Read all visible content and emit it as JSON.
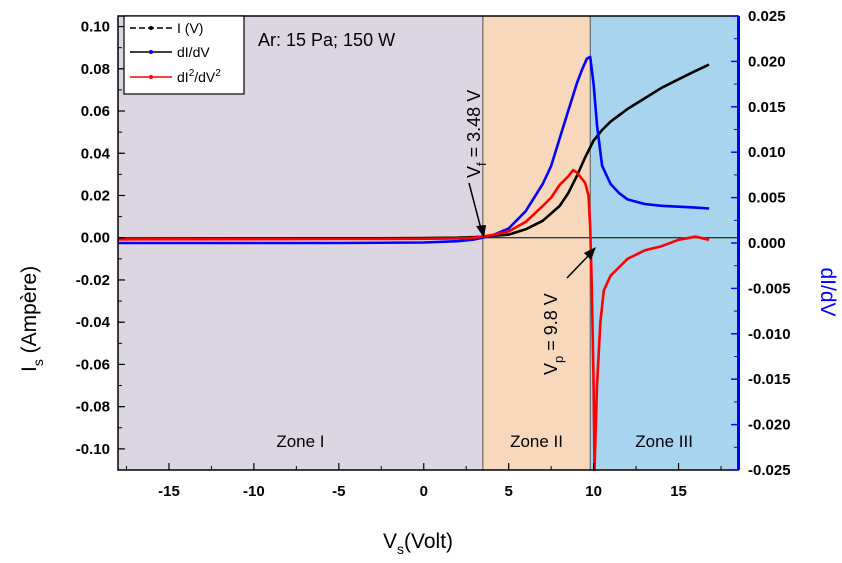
{
  "chart_data": {
    "type": "line",
    "xlabel": {
      "main": "V",
      "sub": "s",
      "rest": "(Volt)"
    },
    "ylabel": {
      "main": "I",
      "sub": "s",
      "rest": " (Ampère)"
    },
    "y2label": "dI/dV",
    "xlim": [
      -18,
      18.5
    ],
    "ylim": [
      -0.11,
      0.105
    ],
    "y2lim": [
      -0.025,
      0.025
    ],
    "xticks": [
      "-15",
      "-10",
      "-5",
      "0",
      "5",
      "10",
      "15"
    ],
    "yticks": [
      "0.10",
      "0.08",
      "0.06",
      "0.04",
      "0.02",
      "0.00",
      "-0.02",
      "-0.04",
      "-0.06",
      "-0.08",
      "-0.10"
    ],
    "y2ticks": [
      "0.025",
      "0.020",
      "0.015",
      "0.010",
      "0.005",
      "0.000",
      "-0.005",
      "-0.010",
      "-0.015",
      "-0.020",
      "-0.025"
    ],
    "title_annotation": "Ar: 15 Pa; 150 W",
    "legend": {
      "placement": "top-left",
      "entries": [
        {
          "label": "I (V)",
          "color": "#000000"
        },
        {
          "label": "dI/dV",
          "color": "#0000ff"
        },
        {
          "label": "dI2/dV2",
          "main": "dI",
          "sup1": "2",
          "mid": "/dV",
          "sup2": "2",
          "color": "#ff0000"
        }
      ]
    },
    "zones": [
      {
        "label": "Zone I",
        "x0": -18,
        "x1": 3.48,
        "color": "#dcd6e2"
      },
      {
        "label": "Zone II",
        "x0": 3.48,
        "x1": 9.8,
        "color": "#f7d8bc"
      },
      {
        "label": "Zone III",
        "x0": 9.8,
        "x1": 18.5,
        "color": "#a8d4ee"
      }
    ],
    "annotations": {
      "vf": {
        "main": "V",
        "sub": "f",
        "rest": " = 3.48 V",
        "x": 3.48
      },
      "vp": {
        "main": "V",
        "sub": "p",
        "rest": " = 9.8 V",
        "x": 9.8
      }
    },
    "series": [
      {
        "name": "I (V)",
        "axis": "left",
        "color": "#000000",
        "x": [
          -18,
          -10,
          -5,
          0,
          2,
          3,
          4,
          5,
          6,
          7,
          8,
          8.5,
          9,
          9.5,
          10,
          10.5,
          11,
          12,
          13,
          14,
          15,
          16,
          16.8
        ],
        "y": [
          -0.0005,
          -0.0004,
          -0.0003,
          -0.0002,
          0.0,
          0.0003,
          0.0008,
          0.0015,
          0.004,
          0.008,
          0.015,
          0.021,
          0.029,
          0.038,
          0.046,
          0.051,
          0.055,
          0.061,
          0.066,
          0.071,
          0.075,
          0.079,
          0.082
        ]
      },
      {
        "name": "dI/dV",
        "axis": "right",
        "color": "#0000ff",
        "x": [
          -18,
          -10,
          -5,
          0,
          2,
          3,
          4,
          5,
          6,
          7,
          7.5,
          8,
          8.5,
          9,
          9.3,
          9.6,
          9.8,
          10.0,
          10.2,
          10.5,
          11,
          11.5,
          12,
          13,
          14,
          15,
          16,
          16.8
        ],
        "y": [
          0.0,
          0.0,
          0.0,
          5e-05,
          0.0002,
          0.0004,
          0.0008,
          0.0016,
          0.0035,
          0.0065,
          0.0085,
          0.0115,
          0.0145,
          0.0175,
          0.019,
          0.0203,
          0.0205,
          0.0175,
          0.013,
          0.0085,
          0.0065,
          0.0055,
          0.0048,
          0.0043,
          0.0041,
          0.004,
          0.0039,
          0.0038
        ]
      },
      {
        "name": "dI2/dV2",
        "axis": "left",
        "color": "#ff0000",
        "x": [
          -18,
          -10,
          -5,
          0,
          2,
          3,
          4,
          5,
          6,
          7,
          7.5,
          8,
          8.5,
          8.8,
          9.0,
          9.3,
          9.5,
          9.7,
          9.8,
          9.9,
          10.0,
          10.05,
          10.2,
          10.4,
          10.6,
          11,
          11.5,
          12,
          13,
          14,
          15,
          16,
          16.8
        ],
        "y": [
          -0.0008,
          -0.0007,
          -0.0006,
          -0.0005,
          -0.0003,
          0.0,
          0.0012,
          0.003,
          0.0075,
          0.015,
          0.019,
          0.025,
          0.029,
          0.032,
          0.031,
          0.028,
          0.026,
          0.02,
          0.005,
          -0.025,
          -0.07,
          -0.11,
          -0.07,
          -0.04,
          -0.025,
          -0.018,
          -0.014,
          -0.01,
          -0.006,
          -0.004,
          -0.001,
          0.0005,
          -0.001
        ]
      }
    ]
  }
}
